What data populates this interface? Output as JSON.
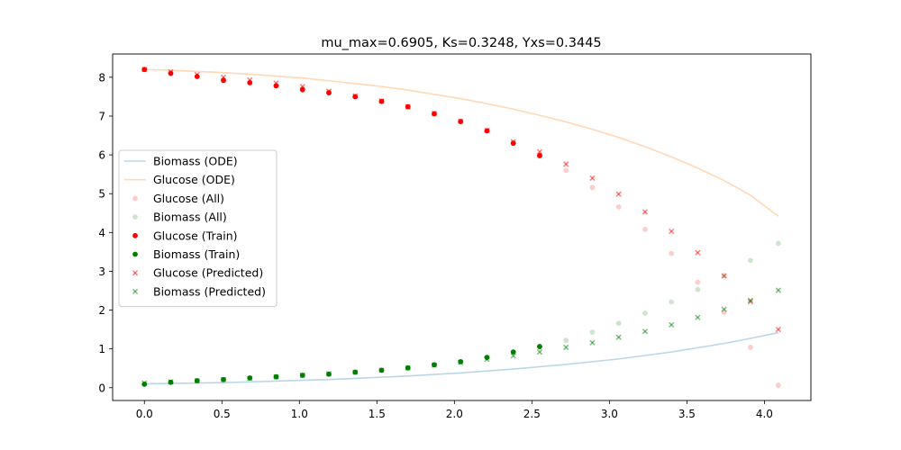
{
  "chart_data": {
    "type": "scatter",
    "title": "mu_max=0.6905, Ks=0.3248, Yxs=0.3445",
    "xlabel": "",
    "ylabel": "",
    "xlim": [
      -0.205,
      4.3
    ],
    "ylim": [
      -0.33,
      8.6
    ],
    "x_ticks": [
      0.0,
      0.5,
      1.0,
      1.5,
      2.0,
      2.5,
      3.0,
      3.5,
      4.0
    ],
    "x_tick_labels": [
      "0.0",
      "0.5",
      "1.0",
      "1.5",
      "2.0",
      "2.5",
      "3.0",
      "3.5",
      "4.0"
    ],
    "y_ticks": [
      0,
      1,
      2,
      3,
      4,
      5,
      6,
      7,
      8
    ],
    "y_tick_labels": [
      "0",
      "1",
      "2",
      "3",
      "4",
      "5",
      "6",
      "7",
      "8"
    ],
    "grid": false,
    "legend_position": "center-left",
    "series": [
      {
        "name": "Biomass (ODE)",
        "kind": "line",
        "color": "#1f77b4",
        "alpha": 0.3,
        "x": [
          0.0,
          0.17,
          0.34,
          0.51,
          0.68,
          0.85,
          1.02,
          1.19,
          1.36,
          1.53,
          1.7,
          1.87,
          2.04,
          2.21,
          2.38,
          2.55,
          2.72,
          2.89,
          3.06,
          3.23,
          3.4,
          3.57,
          3.74,
          3.91,
          4.09
        ],
        "y": [
          0.1,
          0.11,
          0.12,
          0.13,
          0.15,
          0.17,
          0.19,
          0.21,
          0.24,
          0.27,
          0.3,
          0.34,
          0.38,
          0.43,
          0.48,
          0.54,
          0.6,
          0.67,
          0.74,
          0.83,
          0.92,
          1.03,
          1.14,
          1.27,
          1.42
        ]
      },
      {
        "name": "Glucose (ODE)",
        "kind": "line",
        "color": "#ff7f0e",
        "alpha": 0.3,
        "x": [
          0.0,
          0.17,
          0.34,
          0.51,
          0.68,
          0.85,
          1.02,
          1.19,
          1.36,
          1.53,
          1.7,
          1.87,
          2.04,
          2.21,
          2.38,
          2.55,
          2.72,
          2.89,
          3.06,
          3.23,
          3.4,
          3.57,
          3.74,
          3.91,
          4.09
        ],
        "y": [
          8.2,
          8.18,
          8.15,
          8.12,
          8.08,
          8.03,
          7.98,
          7.91,
          7.84,
          7.76,
          7.67,
          7.56,
          7.45,
          7.32,
          7.18,
          7.02,
          6.85,
          6.66,
          6.45,
          6.21,
          5.95,
          5.66,
          5.34,
          4.96,
          4.42
        ]
      },
      {
        "name": "Glucose (All)",
        "kind": "scatter",
        "marker": "circle",
        "color": "#ff0000",
        "alpha": 0.2,
        "x": [
          0.0,
          0.17,
          0.34,
          0.51,
          0.68,
          0.85,
          1.02,
          1.19,
          1.36,
          1.53,
          1.7,
          1.87,
          2.04,
          2.21,
          2.38,
          2.55,
          2.72,
          2.89,
          3.06,
          3.23,
          3.4,
          3.57,
          3.74,
          3.91,
          4.09
        ],
        "y": [
          8.2,
          8.12,
          8.02,
          7.92,
          7.86,
          7.78,
          7.7,
          7.62,
          7.5,
          7.38,
          7.24,
          7.06,
          6.86,
          6.62,
          6.3,
          5.98,
          5.6,
          5.16,
          4.66,
          4.08,
          3.46,
          2.72,
          1.94,
          1.04,
          0.06
        ]
      },
      {
        "name": "Biomass (All)",
        "kind": "scatter",
        "marker": "circle",
        "color": "#008000",
        "alpha": 0.2,
        "x": [
          0.0,
          0.17,
          0.34,
          0.51,
          0.68,
          0.85,
          1.02,
          1.19,
          1.36,
          1.53,
          1.7,
          1.87,
          2.04,
          2.21,
          2.38,
          2.55,
          2.72,
          2.89,
          3.06,
          3.23,
          3.4,
          3.57,
          3.74,
          3.91,
          4.09
        ],
        "y": [
          0.1,
          0.14,
          0.18,
          0.21,
          0.25,
          0.28,
          0.32,
          0.35,
          0.4,
          0.45,
          0.51,
          0.59,
          0.67,
          0.78,
          0.92,
          1.06,
          1.22,
          1.43,
          1.66,
          1.92,
          2.21,
          2.53,
          2.89,
          3.28,
          3.72
        ]
      },
      {
        "name": "Glucose (Train)",
        "kind": "scatter",
        "marker": "circle",
        "color": "#ff0000",
        "alpha": 1,
        "x": [
          0.0,
          0.17,
          0.34,
          0.51,
          0.68,
          0.85,
          1.02,
          1.19,
          1.36,
          1.53,
          1.7,
          1.87,
          2.04,
          2.21,
          2.38,
          2.55
        ],
        "y": [
          8.2,
          8.1,
          8.02,
          7.92,
          7.86,
          7.78,
          7.68,
          7.6,
          7.5,
          7.38,
          7.24,
          7.06,
          6.86,
          6.62,
          6.3,
          5.98
        ]
      },
      {
        "name": "Biomass (Train)",
        "kind": "scatter",
        "marker": "circle",
        "color": "#008000",
        "alpha": 1,
        "x": [
          0.0,
          0.17,
          0.34,
          0.51,
          0.68,
          0.85,
          1.02,
          1.19,
          1.36,
          1.53,
          1.7,
          1.87,
          2.04,
          2.21,
          2.38,
          2.55
        ],
        "y": [
          0.09,
          0.14,
          0.18,
          0.21,
          0.25,
          0.28,
          0.32,
          0.35,
          0.4,
          0.45,
          0.51,
          0.59,
          0.67,
          0.78,
          0.92,
          1.06
        ]
      },
      {
        "name": "Glucose (Predicted)",
        "kind": "scatter",
        "marker": "x",
        "color": "#ff0000",
        "alpha": 0.5,
        "x": [
          0.0,
          0.17,
          0.34,
          0.51,
          0.68,
          0.85,
          1.02,
          1.19,
          1.36,
          1.53,
          1.7,
          1.87,
          2.04,
          2.21,
          2.38,
          2.55,
          2.72,
          2.89,
          3.06,
          3.23,
          3.4,
          3.57,
          3.74,
          3.91,
          4.09
        ],
        "y": [
          8.2,
          8.14,
          8.07,
          8.0,
          7.93,
          7.85,
          7.76,
          7.64,
          7.52,
          7.39,
          7.24,
          7.07,
          6.87,
          6.63,
          6.34,
          6.08,
          5.76,
          5.4,
          4.99,
          4.53,
          4.03,
          3.48,
          2.88,
          2.22,
          1.5
        ]
      },
      {
        "name": "Biomass (Predicted)",
        "kind": "scatter",
        "marker": "x",
        "color": "#008000",
        "alpha": 0.5,
        "x": [
          0.0,
          0.17,
          0.34,
          0.51,
          0.68,
          0.85,
          1.02,
          1.19,
          1.36,
          1.53,
          1.7,
          1.87,
          2.04,
          2.21,
          2.38,
          2.55,
          2.72,
          2.89,
          3.06,
          3.23,
          3.4,
          3.57,
          3.74,
          3.91,
          4.09
        ],
        "y": [
          0.12,
          0.15,
          0.18,
          0.21,
          0.24,
          0.28,
          0.32,
          0.36,
          0.4,
          0.45,
          0.51,
          0.58,
          0.65,
          0.73,
          0.82,
          0.92,
          1.04,
          1.16,
          1.3,
          1.45,
          1.62,
          1.81,
          2.02,
          2.25,
          2.51
        ]
      }
    ]
  }
}
